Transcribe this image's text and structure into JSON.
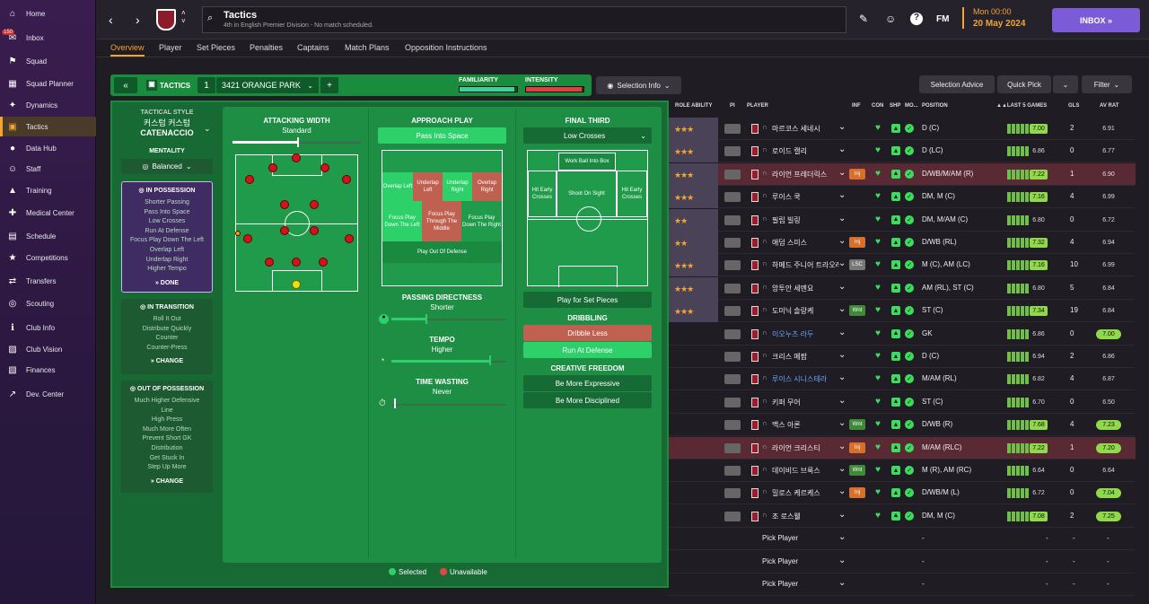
{
  "sidebar": {
    "items": [
      {
        "label": "Home",
        "icon": "home-icon"
      },
      {
        "label": "Inbox",
        "icon": "inbox-icon",
        "badge": "150"
      },
      {
        "label": "Squad",
        "icon": "shirt-icon"
      },
      {
        "label": "Squad Planner",
        "icon": "planner-icon"
      },
      {
        "label": "Dynamics",
        "icon": "dynamics-icon"
      },
      {
        "label": "Tactics",
        "icon": "tactics-icon",
        "active": true
      },
      {
        "label": "Data Hub",
        "icon": "datahub-icon"
      },
      {
        "label": "Staff",
        "icon": "staff-icon"
      },
      {
        "label": "Training",
        "icon": "training-icon"
      },
      {
        "label": "Medical Center",
        "icon": "medical-icon"
      },
      {
        "label": "Schedule",
        "icon": "calendar-icon"
      },
      {
        "label": "Competitions",
        "icon": "trophy-icon"
      },
      {
        "label": "Transfers",
        "icon": "transfer-icon"
      },
      {
        "label": "Scouting",
        "icon": "scouting-icon"
      },
      {
        "label": "Club Info",
        "icon": "info-icon"
      },
      {
        "label": "Club Vision",
        "icon": "vision-icon"
      },
      {
        "label": "Finances",
        "icon": "finance-icon"
      },
      {
        "label": "Dev. Center",
        "icon": "dev-icon"
      }
    ]
  },
  "header": {
    "title": "Tactics",
    "subtitle": "4th in English Premier Division - No match scheduled.",
    "date_time": "Mon 00:00",
    "date": "20 May 2024",
    "inbox": "INBOX",
    "fm": "FM"
  },
  "tabs": [
    "Overview",
    "Player",
    "Set Pieces",
    "Penalties",
    "Captains",
    "Match Plans",
    "Opposition Instructions"
  ],
  "tactic_bar": {
    "tactics_label": "TACTICS",
    "slot": "1",
    "name": "3421 ORANGE PARK",
    "familiarity": "FAMILIARITY",
    "intensity": "INTENSITY",
    "familiarity_level": 0.95,
    "intensity_level": 0.97,
    "selection_info": "Selection Info"
  },
  "style": {
    "label": "TACTICAL STYLE",
    "custom": "커스텀 커스텀",
    "name": "CATENACCIO",
    "mentality_label": "MENTALITY",
    "mentality": "Balanced"
  },
  "in_possession": {
    "title": "IN POSSESSION",
    "items": [
      "Shorter Passing",
      "Pass Into Space",
      "Low Crosses",
      "Run At Defense",
      "Focus Play Down The Left",
      "Overlap Left",
      "Underlap Right",
      "Higher Tempo"
    ],
    "button": "DONE"
  },
  "in_transition": {
    "title": "IN TRANSITION",
    "items": [
      "Roll It Out",
      "Distribute Quickly",
      "Counter",
      "Counter-Press"
    ],
    "button": "CHANGE"
  },
  "out_possession": {
    "title": "OUT OF POSSESSION",
    "items": [
      "Much Higher Defensive",
      "Line",
      "High Press",
      "Much More Often",
      "Prevent Short GK",
      "Distribution",
      "Get Stuck In",
      "Step Up More"
    ],
    "button": "CHANGE"
  },
  "attacking_width": {
    "title": "ATTACKING WIDTH",
    "value": "Standard",
    "level": 0.5
  },
  "approach": {
    "title": "APPROACH PLAY",
    "button": "Pass Into Space",
    "zones": {
      "overlap_left": "Overlap Left",
      "underlap_left": "Underlap Left",
      "underlap_right": "Underlap Right",
      "overlap_right": "Overlap Right",
      "focus_left": "Focus Play Down The Left",
      "focus_middle": "Focus Play Through The Middle",
      "focus_right": "Focus Play Down The Right",
      "out_defense": "Play Out Of Defense"
    }
  },
  "passing": {
    "title": "PASSING DIRECTNESS",
    "value": "Shorter",
    "level": 0.3
  },
  "tempo": {
    "title": "TEMPO",
    "value": "Higher",
    "level": 0.85
  },
  "time_wasting": {
    "title": "TIME WASTING",
    "value": "Never",
    "level": 0.02
  },
  "final_third": {
    "title": "FINAL THIRD",
    "select": "Low Crosses",
    "work_ball": "Work Ball Into Box",
    "hit_left": "Hit Early Crosses",
    "shoot": "Shoot On Sight",
    "hit_right": "Hit Early Crosses",
    "set_pieces": "Play for Set Pieces"
  },
  "dribbling": {
    "title": "DRIBBLING",
    "less": "Dribble Less",
    "run": "Run At Defense"
  },
  "creative": {
    "title": "CREATIVE FREEDOM",
    "expressive": "Be More Expressive",
    "disciplined": "Be More Disciplined"
  },
  "legend": {
    "selected": "Selected",
    "unavailable": "Unavailable"
  },
  "right_buttons": {
    "advice": "Selection Advice",
    "quick": "Quick Pick",
    "filter": "Filter"
  },
  "table_headers": {
    "role": "ROLE ABILITY",
    "pi": "PI",
    "player": "PLAYER",
    "inf": "INF",
    "con": "CON",
    "shp": "SHP",
    "mo": "MO...",
    "position": "POSITION",
    "last5": "LAST 5 GAMES",
    "gls": "GLS",
    "avrat": "AV RAT"
  },
  "players": [
    {
      "name": "마르코스 세네시",
      "stars": "★★★",
      "pos": "D (C)",
      "form": "7.00",
      "gls": "2",
      "avr": "6.91",
      "inf": "",
      "hl": false
    },
    {
      "name": "로이드 캘리",
      "stars": "★★★",
      "pos": "D (LC)",
      "form": "6.86",
      "gls": "0",
      "avr": "6.77",
      "inf": "",
      "hl": false
    },
    {
      "name": "라이언 프레더릭스",
      "stars": "★★★",
      "pos": "D/WB/M/AM (R)",
      "form": "7.22",
      "gls": "1",
      "avr": "6.90",
      "inf": "Inj",
      "hl": true
    },
    {
      "name": "루이스 쿡",
      "stars": "★★★",
      "pos": "DM, M (C)",
      "form": "7.16",
      "gls": "4",
      "avr": "6.99",
      "inf": "",
      "hl": false
    },
    {
      "name": "필립 빌링",
      "stars": "★★",
      "pos": "DM, M/AM (C)",
      "form": "6.80",
      "gls": "0",
      "avr": "6.72",
      "inf": "",
      "hl": false
    },
    {
      "name": "애덤 스미스",
      "stars": "★★",
      "pos": "D/WB (RL)",
      "form": "7.32",
      "gls": "4",
      "avr": "6.94",
      "inf": "Inj",
      "hl": false
    },
    {
      "name": "하메드 주니어 트라오레",
      "stars": "★★★",
      "pos": "M (C), AM (LC)",
      "form": "7.16",
      "gls": "10",
      "avr": "6.99",
      "inf": "LSC",
      "hl": false
    },
    {
      "name": "앙투안 세멘요",
      "stars": "★★★",
      "pos": "AM (RL), ST (C)",
      "form": "6.80",
      "gls": "5",
      "avr": "6.84",
      "inf": "",
      "hl": false
    },
    {
      "name": "도미닉 솔랑케",
      "stars": "★★★",
      "pos": "ST (C)",
      "form": "7.34",
      "gls": "19",
      "avr": "6.84",
      "inf": "Wnt",
      "hl": false
    },
    {
      "name": "이오누츠 라두",
      "stars": "",
      "pos": "GK",
      "form": "6.86",
      "gls": "0",
      "avr": "7.00",
      "inf": "",
      "hl": false
    },
    {
      "name": "크리스 메팜",
      "stars": "",
      "pos": "D (C)",
      "form": "6.94",
      "gls": "2",
      "avr": "6.86",
      "inf": "",
      "hl": false
    },
    {
      "name": "루이스 시니스테라",
      "stars": "",
      "pos": "M/AM (RL)",
      "form": "6.82",
      "gls": "4",
      "avr": "6.87",
      "inf": "",
      "hl": false
    },
    {
      "name": "키퍼 무어",
      "stars": "",
      "pos": "ST (C)",
      "form": "6.70",
      "gls": "0",
      "avr": "6.50",
      "inf": "",
      "hl": false
    },
    {
      "name": "맥스 아론",
      "stars": "",
      "pos": "D/WB (R)",
      "form": "7.68",
      "gls": "4",
      "avr": "7.23",
      "inf": "Wnt",
      "hl": false
    },
    {
      "name": "라이언 크리스티",
      "stars": "",
      "pos": "M/AM (RLC)",
      "form": "7.22",
      "gls": "1",
      "avr": "7.20",
      "inf": "Inj",
      "hl": true
    },
    {
      "name": "데이비드 브룩스",
      "stars": "",
      "pos": "M (R), AM (RC)",
      "form": "6.64",
      "gls": "0",
      "avr": "6.64",
      "inf": "Wnt",
      "hl": false
    },
    {
      "name": "밀로스 케르케스",
      "stars": "",
      "pos": "D/WB/M (L)",
      "form": "6.72",
      "gls": "0",
      "avr": "7.04",
      "inf": "Inj",
      "hl": false
    },
    {
      "name": "조 로스웰",
      "stars": "",
      "pos": "DM, M (C)",
      "form": "7.08",
      "gls": "2",
      "avr": "7.25",
      "inf": "",
      "hl": false
    }
  ],
  "pick_player": "Pick Player",
  "dash": "-"
}
